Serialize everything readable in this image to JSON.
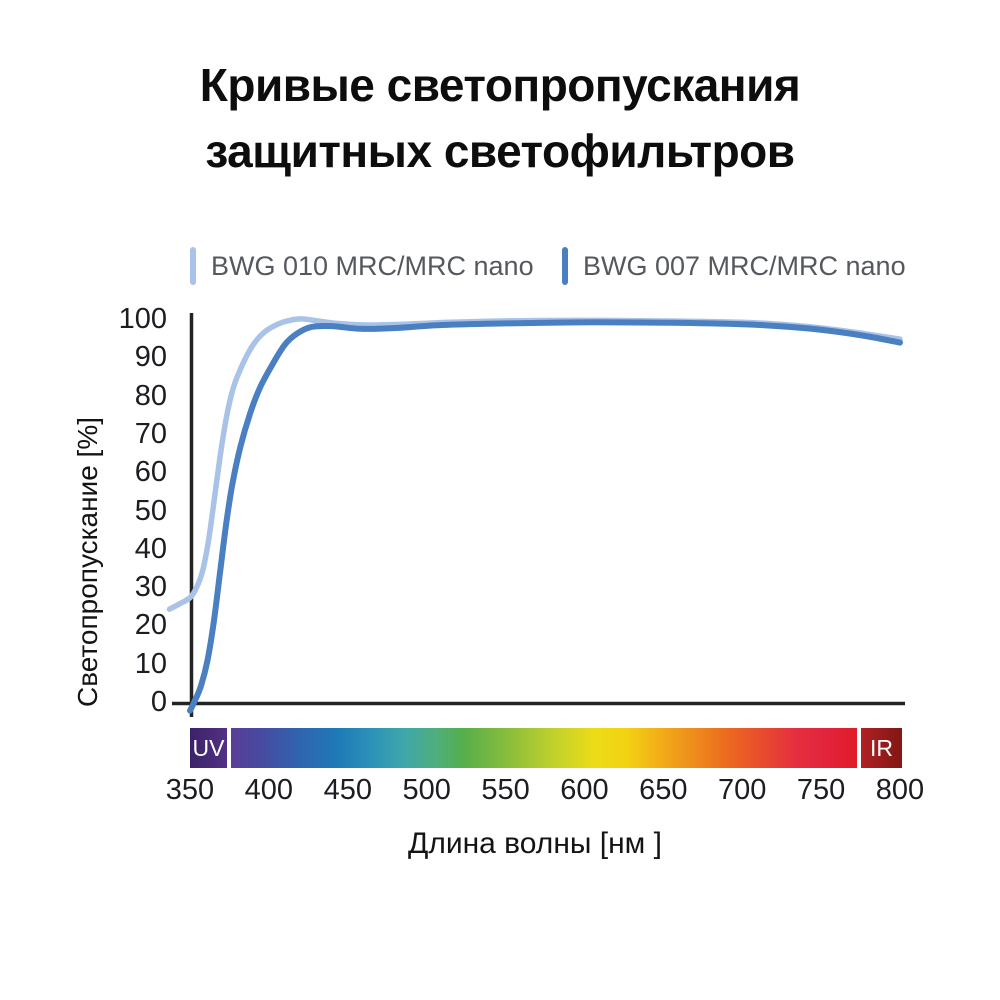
{
  "header": {
    "title_line1": "Кривые светопропускания",
    "title_line2": "защитных светофильтров"
  },
  "colors": {
    "axis_line": "#232323",
    "tick_text": "#1c1c22",
    "title_text": "#0d0d0d",
    "legend_text": "#55585e"
  },
  "chart_data": {
    "type": "line",
    "title": "Кривые светопропускания защитных светофильтров",
    "xlabel": "Длина волны [нм ]",
    "ylabel": "Светопропускание [%]",
    "xlim": [
      350,
      800
    ],
    "ylim": [
      0,
      100
    ],
    "x_ticks": [
      350,
      400,
      450,
      500,
      550,
      600,
      650,
      700,
      750,
      800
    ],
    "y_ticks": [
      0,
      10,
      20,
      30,
      40,
      50,
      60,
      70,
      80,
      90,
      100
    ],
    "grid": false,
    "legend_position": "top",
    "series": [
      {
        "name": "BWG 010 MRC/MRC nano",
        "color": "#a9c2e7",
        "stroke_width": 5.5,
        "points": [
          [
            337,
            24.5
          ],
          [
            343,
            25.8
          ],
          [
            350,
            27.5
          ],
          [
            354,
            30
          ],
          [
            358,
            34.5
          ],
          [
            362,
            43
          ],
          [
            366,
            55
          ],
          [
            370,
            67
          ],
          [
            374,
            76.5
          ],
          [
            378,
            83
          ],
          [
            384,
            89
          ],
          [
            390,
            93.5
          ],
          [
            397,
            96.8
          ],
          [
            405,
            98.8
          ],
          [
            413,
            99.9
          ],
          [
            421,
            100.3
          ],
          [
            432,
            99.7
          ],
          [
            446,
            99.0
          ],
          [
            462,
            98.7
          ],
          [
            485,
            98.9
          ],
          [
            515,
            99.4
          ],
          [
            555,
            99.8
          ],
          [
            610,
            99.9
          ],
          [
            660,
            99.7
          ],
          [
            700,
            99.4
          ],
          [
            730,
            98.7
          ],
          [
            755,
            97.7
          ],
          [
            778,
            96.4
          ],
          [
            800,
            95.0
          ]
        ]
      },
      {
        "name": "BWG 007 MRC/MRC nano",
        "color": "#4a7fc2",
        "stroke_width": 6,
        "points": [
          [
            350,
            -2
          ],
          [
            353,
            0.5
          ],
          [
            357,
            4.5
          ],
          [
            361,
            11
          ],
          [
            365,
            21
          ],
          [
            369,
            34
          ],
          [
            373,
            47
          ],
          [
            377,
            57.5
          ],
          [
            382,
            67
          ],
          [
            388,
            75.5
          ],
          [
            394,
            82
          ],
          [
            401,
            87.5
          ],
          [
            410,
            93.5
          ],
          [
            418,
            96.5
          ],
          [
            427,
            98.2
          ],
          [
            440,
            98.4
          ],
          [
            458,
            97.7
          ],
          [
            480,
            97.9
          ],
          [
            510,
            98.7
          ],
          [
            550,
            99.1
          ],
          [
            605,
            99.4
          ],
          [
            655,
            99.3
          ],
          [
            700,
            98.9
          ],
          [
            730,
            98.2
          ],
          [
            757,
            97.1
          ],
          [
            780,
            95.7
          ],
          [
            800,
            94.1
          ]
        ]
      }
    ],
    "spectrum_bar": {
      "uv_label": "UV",
      "ir_label": "IR",
      "uv_colors": [
        "#3a2368",
        "#533084"
      ],
      "ir_colors": [
        "#b02024",
        "#811713"
      ],
      "gradient": [
        {
          "pos": 0,
          "color": "#5a3d96"
        },
        {
          "pos": 5,
          "color": "#474ba0"
        },
        {
          "pos": 11,
          "color": "#2f64ae"
        },
        {
          "pos": 17,
          "color": "#1f7ab7"
        },
        {
          "pos": 23,
          "color": "#2d94b8"
        },
        {
          "pos": 28,
          "color": "#40a8a8"
        },
        {
          "pos": 33,
          "color": "#4fae7a"
        },
        {
          "pos": 37,
          "color": "#55ae4c"
        },
        {
          "pos": 45,
          "color": "#8fbf3a"
        },
        {
          "pos": 52,
          "color": "#c3d22b"
        },
        {
          "pos": 58,
          "color": "#ecdc17"
        },
        {
          "pos": 63,
          "color": "#f2d313"
        },
        {
          "pos": 68,
          "color": "#f2b117"
        },
        {
          "pos": 73,
          "color": "#ee921c"
        },
        {
          "pos": 79,
          "color": "#ec6c1e"
        },
        {
          "pos": 85,
          "color": "#e84a2e"
        },
        {
          "pos": 90,
          "color": "#e5303f"
        },
        {
          "pos": 95,
          "color": "#e2243c"
        },
        {
          "pos": 100,
          "color": "#e11c28"
        }
      ]
    }
  }
}
